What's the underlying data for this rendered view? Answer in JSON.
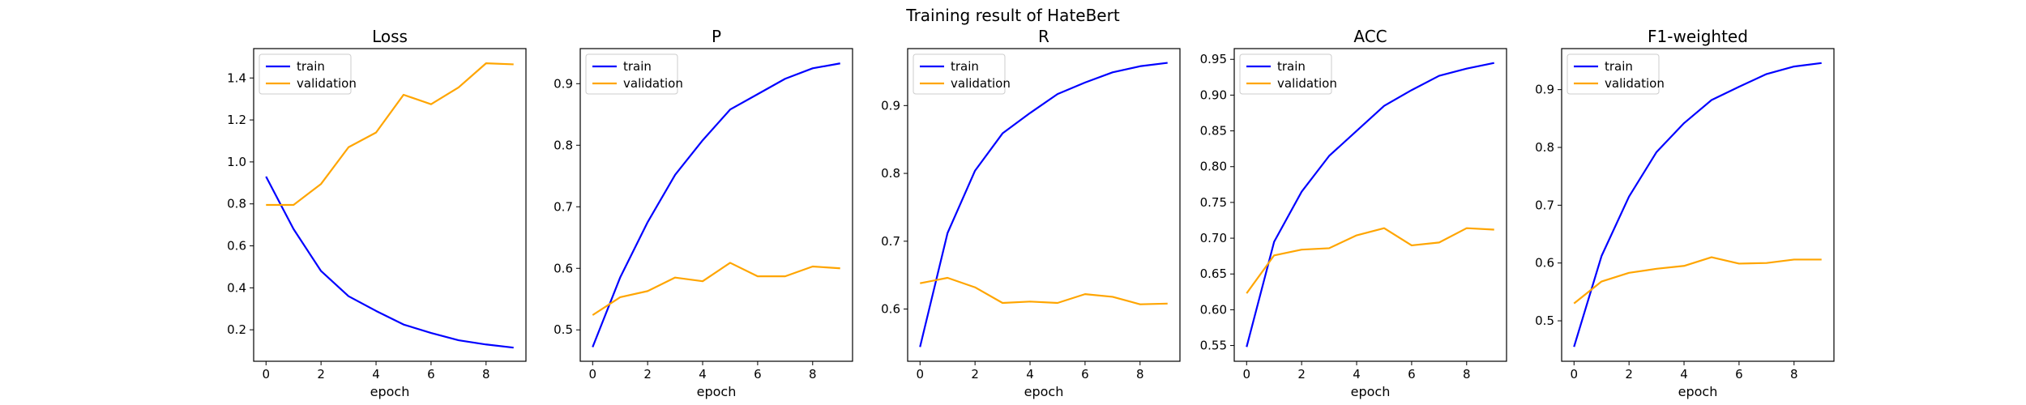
{
  "figure": {
    "suptitle": "Training result of HateBert"
  },
  "chart_data": [
    {
      "type": "line",
      "title": "Loss",
      "xlabel": "epoch",
      "ylabel": "",
      "x": [
        0,
        1,
        2,
        3,
        4,
        5,
        6,
        7,
        8,
        9
      ],
      "xlim": [
        -0.45,
        9.45
      ],
      "ylim": [
        0.05,
        1.54
      ],
      "xticks": [
        0,
        2,
        4,
        6,
        8
      ],
      "yticks": [
        0.2,
        0.4,
        0.6,
        0.8,
        1.0,
        1.2,
        1.4
      ],
      "ytick_labels": [
        "0.2",
        "0.4",
        "0.6",
        "0.8",
        "1.0",
        "1.2",
        "1.4"
      ],
      "legend": "upper-left",
      "grid": false,
      "series": [
        {
          "name": "train",
          "color": "#0000ff",
          "values": [
            0.93,
            0.68,
            0.48,
            0.36,
            0.29,
            0.225,
            0.185,
            0.15,
            0.13,
            0.115
          ]
        },
        {
          "name": "validation",
          "color": "#ffa500",
          "values": [
            0.795,
            0.795,
            0.895,
            1.07,
            1.14,
            1.32,
            1.275,
            1.355,
            1.47,
            1.465
          ]
        }
      ]
    },
    {
      "type": "line",
      "title": "P",
      "xlabel": "epoch",
      "ylabel": "",
      "x": [
        0,
        1,
        2,
        3,
        4,
        5,
        6,
        7,
        8,
        9
      ],
      "xlim": [
        -0.45,
        9.45
      ],
      "ylim": [
        0.449,
        0.957
      ],
      "xticks": [
        0,
        2,
        4,
        6,
        8
      ],
      "yticks": [
        0.5,
        0.6,
        0.7,
        0.8,
        0.9
      ],
      "ytick_labels": [
        "0.5",
        "0.6",
        "0.7",
        "0.8",
        "0.9"
      ],
      "legend": "upper-left",
      "grid": false,
      "series": [
        {
          "name": "train",
          "color": "#0000ff",
          "values": [
            0.472,
            0.585,
            0.675,
            0.752,
            0.808,
            0.858,
            0.883,
            0.908,
            0.925,
            0.933
          ]
        },
        {
          "name": "validation",
          "color": "#ffa500",
          "values": [
            0.524,
            0.553,
            0.563,
            0.585,
            0.579,
            0.609,
            0.587,
            0.587,
            0.603,
            0.6
          ]
        }
      ]
    },
    {
      "type": "line",
      "title": "R",
      "xlabel": "epoch",
      "ylabel": "",
      "x": [
        0,
        1,
        2,
        3,
        4,
        5,
        6,
        7,
        8,
        9
      ],
      "xlim": [
        -0.45,
        9.45
      ],
      "ylim": [
        0.523,
        0.984
      ],
      "xticks": [
        0,
        2,
        4,
        6,
        8
      ],
      "yticks": [
        0.6,
        0.7,
        0.8,
        0.9
      ],
      "ytick_labels": [
        "0.6",
        "0.7",
        "0.8",
        "0.9"
      ],
      "legend": "upper-left",
      "grid": false,
      "series": [
        {
          "name": "train",
          "color": "#0000ff",
          "values": [
            0.544,
            0.712,
            0.804,
            0.859,
            0.889,
            0.917,
            0.934,
            0.949,
            0.958,
            0.963
          ]
        },
        {
          "name": "validation",
          "color": "#ffa500",
          "values": [
            0.638,
            0.646,
            0.632,
            0.609,
            0.611,
            0.609,
            0.622,
            0.618,
            0.607,
            0.608
          ]
        }
      ]
    },
    {
      "type": "line",
      "title": "ACC",
      "xlabel": "epoch",
      "ylabel": "",
      "x": [
        0,
        1,
        2,
        3,
        4,
        5,
        6,
        7,
        8,
        9
      ],
      "xlim": [
        -0.45,
        9.45
      ],
      "ylim": [
        0.528,
        0.965
      ],
      "xticks": [
        0,
        2,
        4,
        6,
        8
      ],
      "yticks": [
        0.55,
        0.6,
        0.65,
        0.7,
        0.75,
        0.8,
        0.85,
        0.9,
        0.95
      ],
      "ytick_labels": [
        "0.55",
        "0.60",
        "0.65",
        "0.70",
        "0.75",
        "0.80",
        "0.85",
        "0.90",
        "0.95"
      ],
      "legend": "upper-left",
      "grid": false,
      "series": [
        {
          "name": "train",
          "color": "#0000ff",
          "values": [
            0.548,
            0.695,
            0.765,
            0.815,
            0.85,
            0.885,
            0.907,
            0.927,
            0.937,
            0.945
          ]
        },
        {
          "name": "validation",
          "color": "#ffa500",
          "values": [
            0.623,
            0.676,
            0.684,
            0.686,
            0.704,
            0.714,
            0.69,
            0.694,
            0.714,
            0.712
          ]
        }
      ]
    },
    {
      "type": "line",
      "title": "F1-weighted",
      "xlabel": "epoch",
      "ylabel": "",
      "x": [
        0,
        1,
        2,
        3,
        4,
        5,
        6,
        7,
        8,
        9
      ],
      "xlim": [
        -0.45,
        9.45
      ],
      "ylim": [
        0.43,
        0.971
      ],
      "xticks": [
        0,
        2,
        4,
        6,
        8
      ],
      "yticks": [
        0.5,
        0.6,
        0.7,
        0.8,
        0.9
      ],
      "ytick_labels": [
        "0.5",
        "0.6",
        "0.7",
        "0.8",
        "0.9"
      ],
      "legend": "upper-left",
      "grid": false,
      "series": [
        {
          "name": "train",
          "color": "#0000ff",
          "values": [
            0.455,
            0.612,
            0.715,
            0.792,
            0.842,
            0.882,
            0.905,
            0.927,
            0.94,
            0.946
          ]
        },
        {
          "name": "validation",
          "color": "#ffa500",
          "values": [
            0.53,
            0.568,
            0.583,
            0.59,
            0.595,
            0.61,
            0.599,
            0.6,
            0.606,
            0.606
          ]
        }
      ]
    }
  ]
}
